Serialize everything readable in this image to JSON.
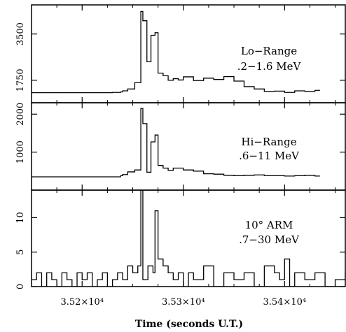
{
  "chart_data": {
    "type": "line",
    "x_axis": {
      "label": "Time (seconds U.T.)",
      "range": [
        35150,
        35460
      ],
      "ticks": [
        {
          "value": 35200,
          "label": "3.52×10⁴"
        },
        {
          "value": 35300,
          "label": "3.53×10⁴"
        },
        {
          "value": 35400,
          "label": "3.54×10⁴"
        }
      ],
      "grid": false
    },
    "panels": [
      {
        "name": "lo-range",
        "annotation": [
          "Lo−Range",
          ".2−1.6 MeV"
        ],
        "y_range": [
          900,
          4600
        ],
        "y_ticks": [
          {
            "value": 1750,
            "label": "1750"
          },
          {
            "value": 3500,
            "label": "3500"
          }
        ],
        "x": [
          35150,
          35230,
          35238,
          35240,
          35245,
          35252,
          35258,
          35260,
          35264,
          35268,
          35272,
          35275,
          35280,
          35285,
          35290,
          35295,
          35300,
          35310,
          35320,
          35330,
          35340,
          35350,
          35360,
          35370,
          35380,
          35390,
          35400,
          35410,
          35420,
          35430
        ],
        "y": [
          1280,
          1290,
          1310,
          1350,
          1420,
          1660,
          4350,
          4000,
          2450,
          3450,
          3550,
          2020,
          1920,
          1750,
          1810,
          1760,
          1880,
          1740,
          1830,
          1780,
          1890,
          1720,
          1510,
          1420,
          1330,
          1340,
          1290,
          1350,
          1330,
          1370
        ]
      },
      {
        "name": "hi-range",
        "annotation": [
          "Hi−Range",
          ".6−11 MeV"
        ],
        "y_range": [
          0,
          2300
        ],
        "y_ticks": [
          {
            "value": 1000,
            "label": "1000"
          },
          {
            "value": 2000,
            "label": "2000"
          }
        ],
        "x": [
          35150,
          35230,
          35238,
          35240,
          35245,
          35252,
          35258,
          35260,
          35264,
          35268,
          35272,
          35275,
          35280,
          35285,
          35290,
          35300,
          35310,
          35320,
          35330,
          35340,
          35350,
          35360,
          35370,
          35380,
          35390,
          35400,
          35410,
          35420,
          35430
        ],
        "y": [
          350,
          350,
          380,
          410,
          480,
          530,
          2150,
          1750,
          470,
          1270,
          1450,
          650,
          580,
          520,
          580,
          530,
          500,
          430,
          420,
          390,
          380,
          390,
          400,
          380,
          380,
          370,
          380,
          390,
          370
        ]
      },
      {
        "name": "arm",
        "annotation": [
          "10° ARM",
          ".7−30 MeV"
        ],
        "y_range": [
          0,
          14
        ],
        "y_ticks": [
          {
            "value": 0,
            "label": "0"
          },
          {
            "value": 5,
            "label": "5"
          },
          {
            "value": 10,
            "label": "10"
          }
        ],
        "x": [
          35150,
          35155,
          35160,
          35165,
          35170,
          35175,
          35180,
          35185,
          35190,
          35195,
          35200,
          35205,
          35210,
          35215,
          35220,
          35225,
          35230,
          35235,
          35240,
          35245,
          35250,
          35255,
          35258,
          35260,
          35265,
          35270,
          35272,
          35275,
          35280,
          35285,
          35290,
          35295,
          35300,
          35305,
          35310,
          35320,
          35330,
          35340,
          35350,
          35360,
          35370,
          35380,
          35390,
          35395,
          35400,
          35405,
          35410,
          35420,
          35430,
          35440,
          35450,
          35460
        ],
        "y": [
          1,
          2,
          0,
          2,
          1,
          0,
          2,
          1,
          0,
          2,
          1,
          2,
          0,
          1,
          2,
          0,
          1,
          2,
          1,
          3,
          2,
          3,
          14,
          1,
          3,
          2,
          11,
          4,
          3,
          2,
          1,
          2,
          0,
          2,
          1,
          3,
          0,
          2,
          1,
          2,
          0,
          3,
          2,
          1,
          4,
          0,
          2,
          1,
          2,
          0,
          1,
          2
        ]
      }
    ]
  }
}
